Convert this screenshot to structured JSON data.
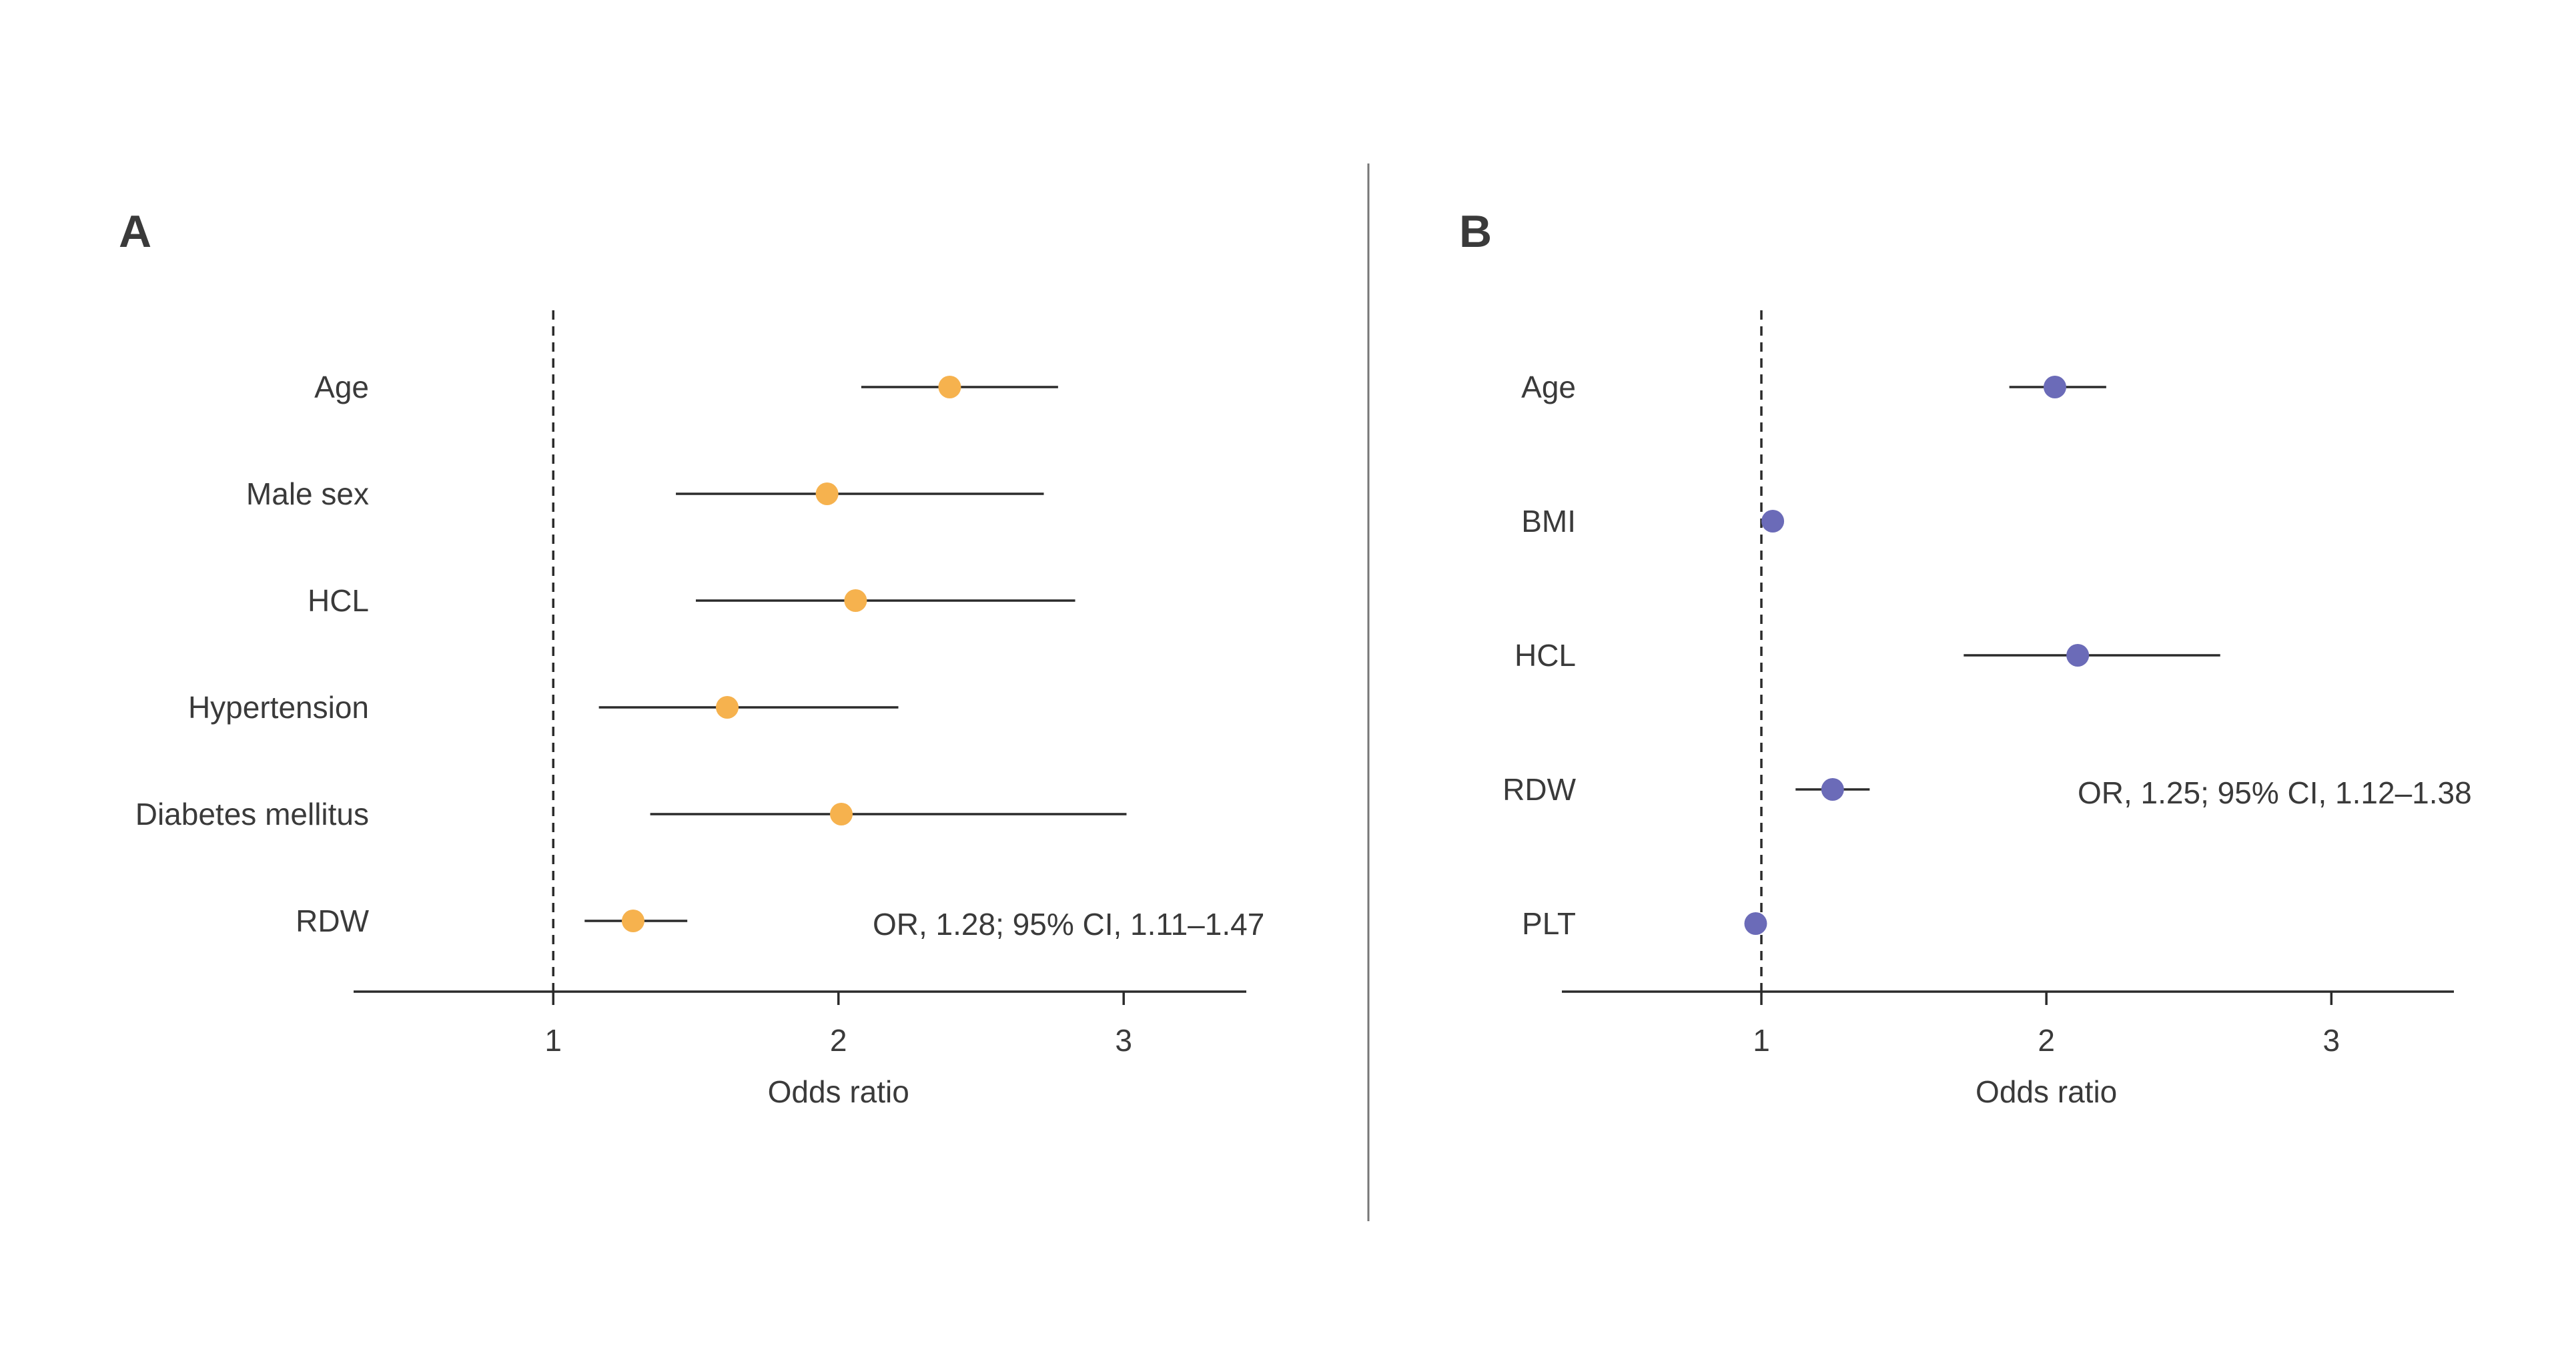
{
  "chart_data": [
    {
      "type": "forest",
      "panel": "A",
      "xlabel": "Odds ratio",
      "xticks": [
        1,
        2,
        3
      ],
      "xlim": [
        0.3,
        3.43
      ],
      "reference_line": 1,
      "color": "#f6b24e",
      "categories": [
        "Age",
        "Male sex",
        "HCL",
        "Hypertension",
        "Diabetes mellitus",
        "RDW"
      ],
      "values": [
        2.39,
        1.96,
        2.06,
        1.61,
        2.01,
        1.28
      ],
      "ci_lower": [
        2.08,
        1.43,
        1.5,
        1.16,
        1.34,
        1.11
      ],
      "ci_upper": [
        2.77,
        2.72,
        2.83,
        2.21,
        3.01,
        1.47
      ],
      "annotation": "OR, 1.28; 95% CI, 1.11–1.47"
    },
    {
      "type": "forest",
      "panel": "B",
      "xlabel": "Odds ratio",
      "xticks": [
        1,
        2,
        3
      ],
      "xlim": [
        0.3,
        3.43
      ],
      "reference_line": 1,
      "color": "#6b6bb8",
      "categories": [
        "Age",
        "BMI",
        "HCL",
        "RDW",
        "PLT"
      ],
      "values": [
        2.03,
        1.04,
        2.11,
        1.25,
        0.98
      ],
      "ci_lower": [
        1.87,
        1.02,
        1.71,
        1.12,
        0.97
      ],
      "ci_upper": [
        2.21,
        1.06,
        2.61,
        1.38,
        0.99
      ],
      "annotation": "OR, 1.25; 95% CI, 1.12–1.38"
    }
  ]
}
